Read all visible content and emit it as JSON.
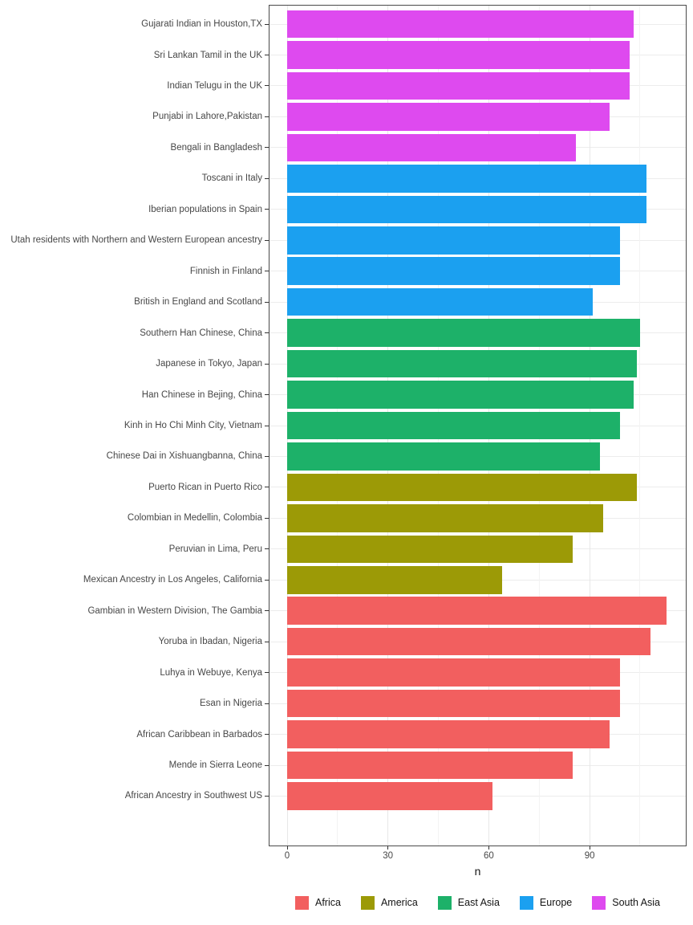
{
  "chart_data": {
    "type": "bar",
    "orientation": "horizontal",
    "title": "",
    "xlabel": "n",
    "ylabel": "",
    "x_ticks": [
      0,
      30,
      60,
      90
    ],
    "x_minor_ticks": [
      15,
      45,
      75,
      105
    ],
    "xlim": [
      -5.65,
      118.65
    ],
    "grid": true,
    "legend_position": "bottom",
    "groups": [
      {
        "name": "Africa",
        "color": "#F25F5F"
      },
      {
        "name": "America",
        "color": "#9C9A06"
      },
      {
        "name": "East Asia",
        "color": "#1DB169"
      },
      {
        "name": "Europe",
        "color": "#1BA0F0"
      },
      {
        "name": "South Asia",
        "color": "#DE4AEF"
      }
    ],
    "bars": [
      {
        "label": "Gujarati Indian in Houston,TX",
        "value": 103,
        "group": "South Asia"
      },
      {
        "label": "Sri Lankan Tamil in the UK",
        "value": 102,
        "group": "South Asia"
      },
      {
        "label": "Indian Telugu in the UK",
        "value": 102,
        "group": "South Asia"
      },
      {
        "label": "Punjabi in Lahore,Pakistan",
        "value": 96,
        "group": "South Asia"
      },
      {
        "label": "Bengali in Bangladesh",
        "value": 86,
        "group": "South Asia"
      },
      {
        "label": "Toscani in Italy",
        "value": 107,
        "group": "Europe"
      },
      {
        "label": "Iberian populations in Spain",
        "value": 107,
        "group": "Europe"
      },
      {
        "label": "Utah residents with Northern and Western European ancestry",
        "value": 99,
        "group": "Europe"
      },
      {
        "label": "Finnish in Finland",
        "value": 99,
        "group": "Europe"
      },
      {
        "label": "British in England and Scotland",
        "value": 91,
        "group": "Europe"
      },
      {
        "label": "Southern Han Chinese, China",
        "value": 105,
        "group": "East Asia"
      },
      {
        "label": "Japanese in Tokyo, Japan",
        "value": 104,
        "group": "East Asia"
      },
      {
        "label": "Han Chinese in Bejing, China",
        "value": 103,
        "group": "East Asia"
      },
      {
        "label": "Kinh in Ho Chi Minh City, Vietnam",
        "value": 99,
        "group": "East Asia"
      },
      {
        "label": "Chinese Dai in Xishuangbanna, China",
        "value": 93,
        "group": "East Asia"
      },
      {
        "label": "Puerto Rican in Puerto Rico",
        "value": 104,
        "group": "America"
      },
      {
        "label": "Colombian in Medellin, Colombia",
        "value": 94,
        "group": "America"
      },
      {
        "label": "Peruvian in Lima, Peru",
        "value": 85,
        "group": "America"
      },
      {
        "label": "Mexican Ancestry in Los Angeles, California",
        "value": 64,
        "group": "America"
      },
      {
        "label": "Gambian in Western Division, The Gambia",
        "value": 113,
        "group": "Africa"
      },
      {
        "label": "Yoruba in Ibadan, Nigeria",
        "value": 108,
        "group": "Africa"
      },
      {
        "label": "Luhya in Webuye, Kenya",
        "value": 99,
        "group": "Africa"
      },
      {
        "label": "Esan in Nigeria",
        "value": 99,
        "group": "Africa"
      },
      {
        "label": "African Caribbean in Barbados",
        "value": 96,
        "group": "Africa"
      },
      {
        "label": "Mende in Sierra Leone",
        "value": 85,
        "group": "Africa"
      },
      {
        "label": "African Ancestry in Southwest US",
        "value": 61,
        "group": "Africa"
      }
    ],
    "legend": [
      "Africa",
      "America",
      "East Asia",
      "Europe",
      "South Asia"
    ]
  }
}
